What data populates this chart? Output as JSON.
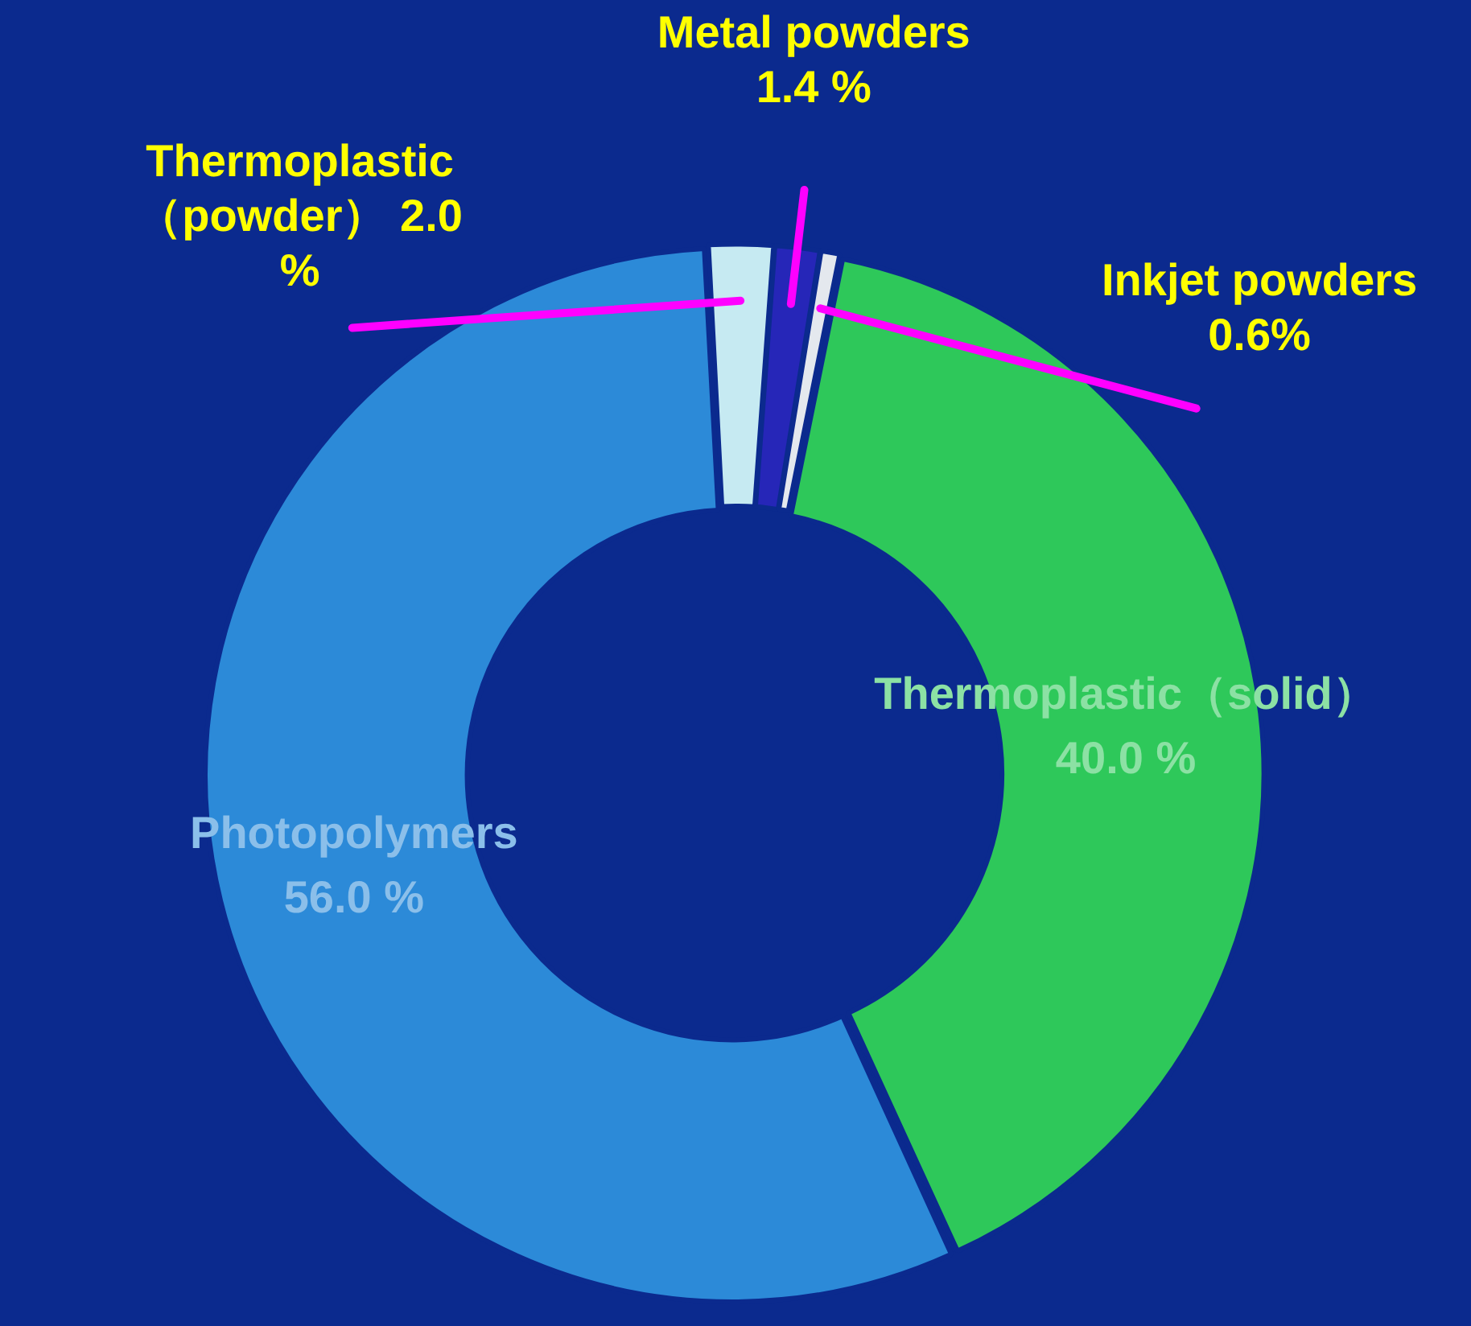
{
  "chart_data": {
    "type": "donut",
    "categories": [
      "Thermoplastic（powder）",
      "Metal powders",
      "Inkjet powders",
      "Thermoplastic（solid）",
      "Photopolymers"
    ],
    "values": [
      2.0,
      1.4,
      0.6,
      40.0,
      56.0
    ],
    "colors": [
      "#c6eaf2",
      "#2626b8",
      "#e4e8ee",
      "#2ec85a",
      "#2c8ad8"
    ],
    "value_labels": [
      "2.0 %",
      "1.4 %",
      "0.6%",
      "40.0 %",
      "56.0 %"
    ],
    "legend": false
  }
}
